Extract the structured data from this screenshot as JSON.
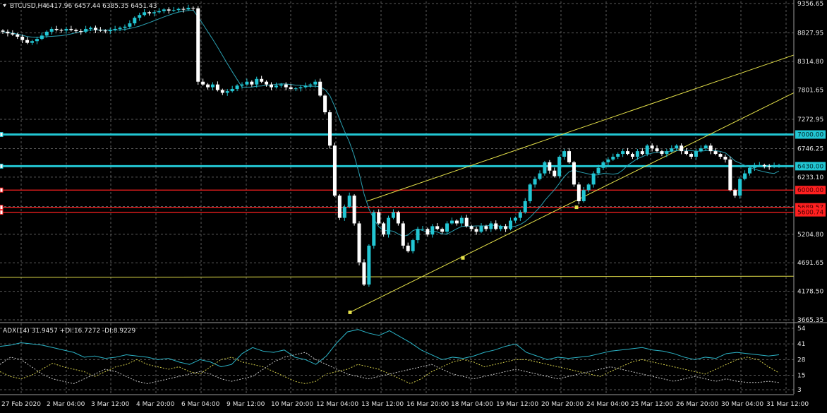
{
  "header": {
    "symbol_tf": "BTCUSD,H4",
    "ohlc": "6417.96 6457.44 6385.35 6451.43"
  },
  "indicator": {
    "label": "ADX(14) 31.9457 +DI:16.7272 -DI:8.9229"
  },
  "colors": {
    "background": "#000000",
    "grid": "#5a5a5a",
    "candle_bull": "#22c6d3",
    "candle_bear": "#ffffff",
    "ma_line": "#2a9fb0",
    "level_cyan": "#22c6d3",
    "level_red": "#ff2020",
    "trend_yellow": "#e6e24a",
    "adx_line": "#2bb3c6",
    "plus_di": "#d6d04a",
    "minus_di": "#c8c8c8",
    "axis_text": "#e6e6e6"
  },
  "chart_data": [
    {
      "type": "candlestick",
      "title": "BTCUSD,H4",
      "ylim": [
        3665.35,
        9356.65
      ],
      "price_ticks": [
        "9356.65",
        "8827.95",
        "8314.80",
        "7801.65",
        "7272.95",
        "6746.25",
        "6233.10",
        "5704.40",
        "5204.80",
        "4691.65",
        "4178.50",
        "3665.35"
      ],
      "x_ticks": [
        "27 Feb 2020",
        "2 Mar 04:00",
        "3 Mar 12:00",
        "4 Mar 20:00",
        "6 Mar 04:00",
        "9 Mar 12:00",
        "10 Mar 20:00",
        "12 Mar 04:00",
        "13 Mar 12:00",
        "16 Mar 20:00",
        "18 Mar 04:00",
        "19 Mar 12:00",
        "20 Mar 20:00",
        "24 Mar 04:00",
        "25 Mar 12:00",
        "26 Mar 20:00",
        "30 Mar 04:00",
        "31 Mar 12:00"
      ],
      "horizontal_levels": [
        {
          "label": "7000.00",
          "price": 7000.0,
          "color": "#22c6d3"
        },
        {
          "label": "6430.00",
          "price": 6430.0,
          "color": "#22c6d3"
        },
        {
          "label": "6000.00",
          "price": 6000.0,
          "color": "#ff2020"
        },
        {
          "label": "5689.57",
          "price": 5689.57,
          "color": "#ff2020"
        },
        {
          "label": "5600.74",
          "price": 5600.74,
          "color": "#ff2020"
        }
      ],
      "close_series": [
        8850,
        8820,
        8800,
        8760,
        8700,
        8650,
        8680,
        8720,
        8780,
        8850,
        8900,
        8880,
        8870,
        8900,
        8880,
        8860,
        8850,
        8900,
        8920,
        8880,
        8870,
        8860,
        8880,
        8900,
        8920,
        8940,
        9000,
        9100,
        9150,
        9200,
        9180,
        9200,
        9220,
        9250,
        9230,
        9240,
        9260,
        9250,
        9280,
        9270,
        7950,
        7900,
        7850,
        7900,
        7800,
        7750,
        7780,
        7820,
        7880,
        7900,
        7950,
        7900,
        8000,
        7950,
        7900,
        7850,
        7880,
        7900,
        7850,
        7820,
        7830,
        7850,
        7880,
        7900,
        7950,
        7700,
        7400,
        6800,
        5900,
        5500,
        5700,
        5900,
        5400,
        4700,
        4300,
        5000,
        5600,
        5400,
        5200,
        5500,
        5600,
        5400,
        5000,
        4900,
        5100,
        5300,
        5300,
        5200,
        5350,
        5300,
        5250,
        5400,
        5450,
        5400,
        5500,
        5350,
        5300,
        5250,
        5350,
        5300,
        5400,
        5300,
        5350,
        5300,
        5450,
        5500,
        5600,
        5800,
        6100,
        6200,
        6300,
        6500,
        6350,
        6250,
        6600,
        6700,
        6500,
        6100,
        5800,
        6000,
        6100,
        6300,
        6400,
        6500,
        6550,
        6600,
        6650,
        6700,
        6650,
        6600,
        6700,
        6650,
        6800,
        6750,
        6700,
        6650,
        6700,
        6750,
        6800,
        6700,
        6650,
        6600,
        6700,
        6750,
        6800,
        6700,
        6650,
        6600,
        6550,
        6000,
        5900,
        6200,
        6300,
        6400,
        6450,
        6450,
        6430,
        6420,
        6440,
        6450
      ]
    },
    {
      "type": "line",
      "title": "ADX(14) 31.9457 +DI:16.7272 -DI:8.9229",
      "ylim": [
        3,
        54
      ],
      "y_ticks": [
        "54",
        "41",
        "28",
        "15",
        "3"
      ],
      "series": [
        {
          "name": "ADX",
          "values": [
            39,
            40,
            42,
            41,
            40,
            38,
            36,
            34,
            30,
            31,
            29,
            30,
            32,
            31,
            30,
            28,
            29,
            26,
            24,
            28,
            26,
            22,
            24,
            33,
            38,
            35,
            34,
            36,
            30,
            28,
            24,
            31,
            42,
            51,
            53,
            50,
            48,
            52,
            47,
            42,
            36,
            32,
            28,
            30,
            29,
            31,
            34,
            36,
            39,
            41,
            34,
            31,
            28,
            30,
            29,
            30,
            31,
            33,
            35,
            36,
            37,
            38,
            36,
            35,
            33,
            30,
            28,
            30,
            29,
            33,
            34,
            33,
            32,
            31,
            32
          ]
        },
        {
          "name": "+DI",
          "values": [
            18,
            14,
            12,
            15,
            20,
            25,
            22,
            20,
            18,
            14,
            18,
            22,
            24,
            28,
            24,
            22,
            20,
            22,
            18,
            16,
            22,
            28,
            30,
            26,
            24,
            22,
            18,
            14,
            10,
            8,
            10,
            16,
            18,
            20,
            24,
            22,
            20,
            16,
            12,
            8,
            12,
            18,
            22,
            26,
            28,
            26,
            22,
            24,
            26,
            28,
            28,
            26,
            24,
            22,
            20,
            18,
            16,
            14,
            18,
            22,
            26,
            28,
            26,
            24,
            22,
            20,
            18,
            16,
            20,
            24,
            28,
            30,
            28,
            22,
            17
          ]
        },
        {
          "name": "-DI",
          "values": [
            24,
            30,
            28,
            22,
            16,
            12,
            10,
            8,
            12,
            16,
            20,
            18,
            14,
            10,
            8,
            10,
            12,
            14,
            16,
            18,
            16,
            12,
            10,
            12,
            14,
            20,
            26,
            30,
            32,
            34,
            28,
            24,
            20,
            16,
            14,
            12,
            14,
            16,
            18,
            20,
            22,
            24,
            20,
            16,
            14,
            12,
            14,
            16,
            18,
            20,
            18,
            16,
            14,
            12,
            14,
            16,
            18,
            20,
            22,
            20,
            18,
            16,
            14,
            12,
            10,
            12,
            14,
            12,
            10,
            12,
            10,
            9,
            9,
            10,
            9
          ]
        }
      ]
    }
  ]
}
